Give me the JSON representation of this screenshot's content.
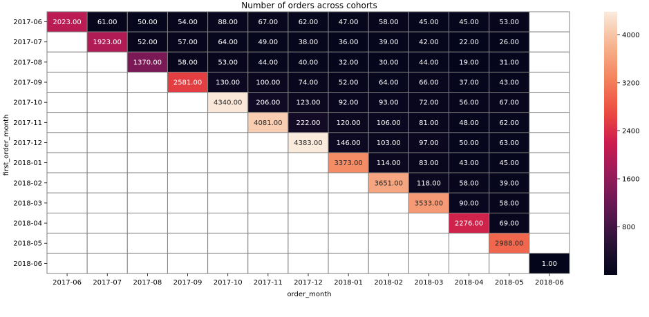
{
  "chart_data": {
    "type": "heatmap",
    "title": "Number of orders across cohorts",
    "xlabel": "order_month",
    "ylabel": "first_order_month",
    "x_categories": [
      "2017-06",
      "2017-07",
      "2017-08",
      "2017-09",
      "2017-10",
      "2017-11",
      "2017-12",
      "2018-01",
      "2018-02",
      "2018-03",
      "2018-04",
      "2018-05",
      "2018-06"
    ],
    "y_categories": [
      "2017-06",
      "2017-07",
      "2017-08",
      "2017-09",
      "2017-10",
      "2017-11",
      "2017-12",
      "2018-01",
      "2018-02",
      "2018-03",
      "2018-04",
      "2018-05",
      "2018-06"
    ],
    "values": [
      [
        2023,
        61,
        50,
        54,
        88,
        67,
        62,
        47,
        58,
        45,
        45,
        53,
        null
      ],
      [
        null,
        1923,
        52,
        57,
        64,
        49,
        38,
        36,
        39,
        42,
        22,
        26,
        null
      ],
      [
        null,
        null,
        1370,
        58,
        53,
        44,
        40,
        32,
        30,
        44,
        19,
        31,
        null
      ],
      [
        null,
        null,
        null,
        2581,
        130,
        100,
        74,
        52,
        64,
        66,
        37,
        43,
        null
      ],
      [
        null,
        null,
        null,
        null,
        4340,
        206,
        123,
        92,
        93,
        72,
        56,
        67,
        null
      ],
      [
        null,
        null,
        null,
        null,
        null,
        4081,
        222,
        120,
        106,
        81,
        48,
        62,
        null
      ],
      [
        null,
        null,
        null,
        null,
        null,
        null,
        4383,
        146,
        103,
        97,
        50,
        63,
        null
      ],
      [
        null,
        null,
        null,
        null,
        null,
        null,
        null,
        3373,
        114,
        83,
        43,
        45,
        null
      ],
      [
        null,
        null,
        null,
        null,
        null,
        null,
        null,
        null,
        3651,
        118,
        58,
        39,
        null
      ],
      [
        null,
        null,
        null,
        null,
        null,
        null,
        null,
        null,
        null,
        3533,
        90,
        58,
        null
      ],
      [
        null,
        null,
        null,
        null,
        null,
        null,
        null,
        null,
        null,
        null,
        2276,
        69,
        null
      ],
      [
        null,
        null,
        null,
        null,
        null,
        null,
        null,
        null,
        null,
        null,
        null,
        2988,
        null
      ],
      [
        null,
        null,
        null,
        null,
        null,
        null,
        null,
        null,
        null,
        null,
        null,
        null,
        1
      ]
    ],
    "value_format": "0.00",
    "colormap": "rocket",
    "color_range": [
      1,
      4383
    ],
    "colorbar_ticks": [
      800,
      1600,
      2400,
      3200,
      4000
    ],
    "cell_border_color": "#808080"
  }
}
